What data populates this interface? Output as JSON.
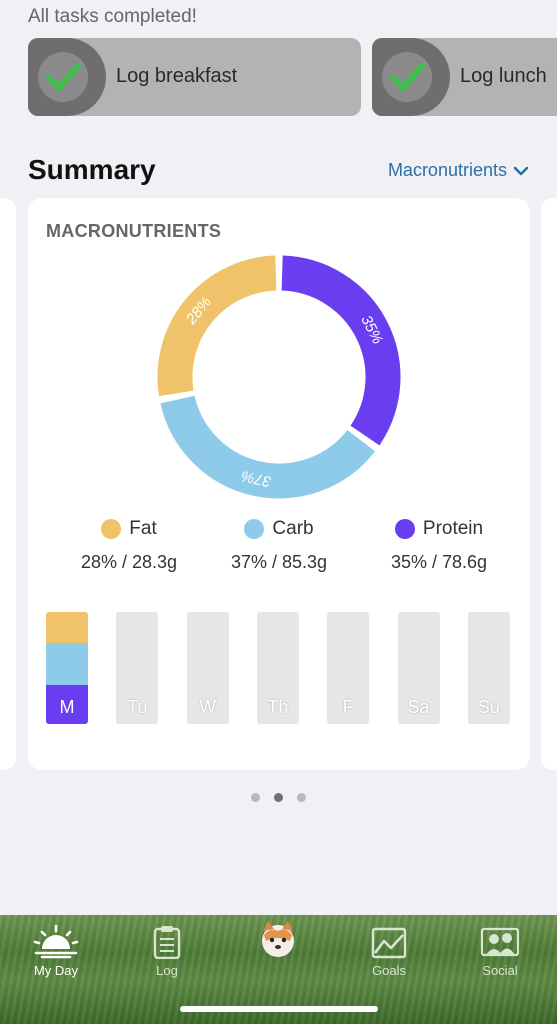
{
  "status_text": "All tasks completed!",
  "tasks": [
    {
      "label": "Log breakfast",
      "done": true
    },
    {
      "label": "Log lunch",
      "done": true
    }
  ],
  "summary": {
    "title": "Summary",
    "selector_label": "Macronutrients"
  },
  "card": {
    "title": "MACRONUTRIENTS",
    "colors": {
      "fat": "#f0c36a",
      "carb": "#8ecbea",
      "protein": "#6a3ef0"
    }
  },
  "chart_data": {
    "type": "pie",
    "title": "MACRONUTRIENTS",
    "categories": [
      "Fat",
      "Carb",
      "Protein"
    ],
    "values": [
      28,
      37,
      35
    ],
    "labels": [
      "28%",
      "37%",
      "35%"
    ],
    "grams": [
      "28.3g",
      "85.3g",
      "78.6g"
    ]
  },
  "legend": [
    {
      "name": "Fat",
      "value": "28% / 28.3g",
      "color": "#f0c36a"
    },
    {
      "name": "Carb",
      "value": "37% / 85.3g",
      "color": "#8ecbea"
    },
    {
      "name": "Protein",
      "value": "35% / 78.6g",
      "color": "#6a3ef0"
    }
  ],
  "week": [
    {
      "label": "M",
      "today": true,
      "fat": 28,
      "carb": 37,
      "protein": 35
    },
    {
      "label": "Tu"
    },
    {
      "label": "W"
    },
    {
      "label": "Th"
    },
    {
      "label": "F"
    },
    {
      "label": "Sa"
    },
    {
      "label": "Su"
    }
  ],
  "pager": {
    "count": 3,
    "active": 1
  },
  "tabs": [
    {
      "label": "My Day",
      "icon": "sunrise-icon",
      "active": true
    },
    {
      "label": "Log",
      "icon": "clipboard-icon"
    },
    {
      "label": "",
      "icon": "dog-avatar-icon"
    },
    {
      "label": "Goals",
      "icon": "chart-icon"
    },
    {
      "label": "Social",
      "icon": "people-icon"
    }
  ]
}
